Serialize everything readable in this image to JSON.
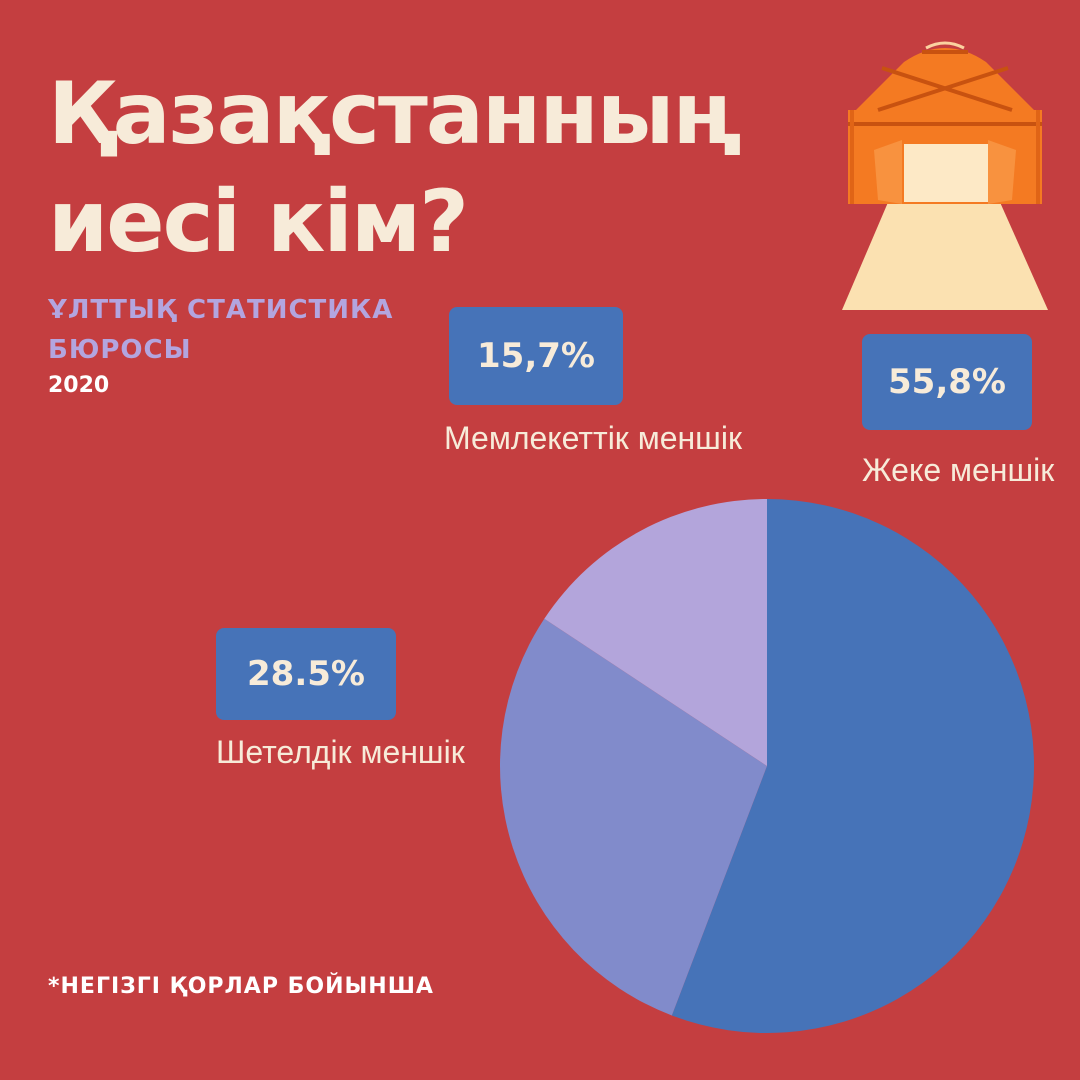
{
  "title_line1": "Қазақстанның",
  "title_line2": "иесі кім?",
  "source": "ҰЛТТЫҚ СТАТИСТИКА БЮРОСЫ",
  "year": "2020",
  "footnote": "*НЕГІЗГІ ҚОРЛАР БОЙЫНША",
  "chart_data": {
    "type": "pie",
    "title": "Қазақстанның иесі кім?",
    "slices": [
      {
        "label": "Жеке меншік",
        "value": 55.8,
        "value_label": "55,8%",
        "color": "#4673b8"
      },
      {
        "label": "Шетелдік меншік",
        "value": 28.5,
        "value_label": "28.5%",
        "color": "#818bcb"
      },
      {
        "label": "Мемлекеттік меншік",
        "value": 15.7,
        "value_label": "15,7%",
        "color": "#b3a5db"
      }
    ]
  },
  "colors": {
    "background": "#c43e40",
    "text_light": "#f7ebd9",
    "accent_lavender": "#b3a5df",
    "badge": "#4673b8"
  },
  "icons": {
    "decoration": "yurt-icon"
  }
}
